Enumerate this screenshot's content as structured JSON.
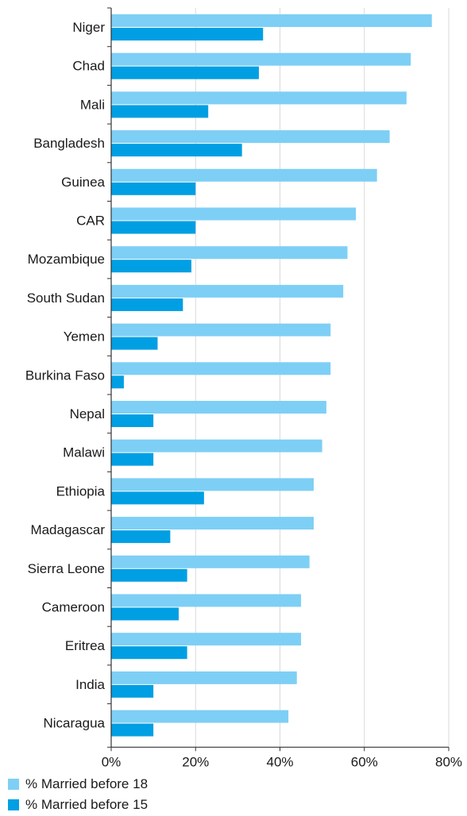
{
  "chart_data": {
    "type": "bar",
    "orientation": "horizontal",
    "categories": [
      "Niger",
      "Chad",
      "Mali",
      "Bangladesh",
      "Guinea",
      "CAR",
      "Mozambique",
      "South Sudan",
      "Yemen",
      "Burkina Faso",
      "Nepal",
      "Malawi",
      "Ethiopia",
      "Madagascar",
      "Sierra Leone",
      "Cameroon",
      "Eritrea",
      "India",
      "Nicaragua"
    ],
    "series": [
      {
        "name": "% Married before 18",
        "color": "#7ecff5",
        "values": [
          76,
          71,
          70,
          66,
          63,
          58,
          56,
          55,
          52,
          52,
          51,
          50,
          48,
          48,
          47,
          45,
          45,
          44,
          42
        ]
      },
      {
        "name": "% Married before 15",
        "color": "#009fe3",
        "values": [
          36,
          35,
          23,
          31,
          20,
          20,
          19,
          17,
          11,
          3,
          10,
          10,
          22,
          14,
          18,
          16,
          18,
          10,
          10
        ]
      }
    ],
    "xlim": [
      0,
      80
    ],
    "xticks": [
      "0%",
      "20%",
      "40%",
      "60%",
      "80%"
    ],
    "xtick_values": [
      0,
      20,
      40,
      60,
      80
    ],
    "grid": true,
    "legend_position": "bottom-left"
  }
}
